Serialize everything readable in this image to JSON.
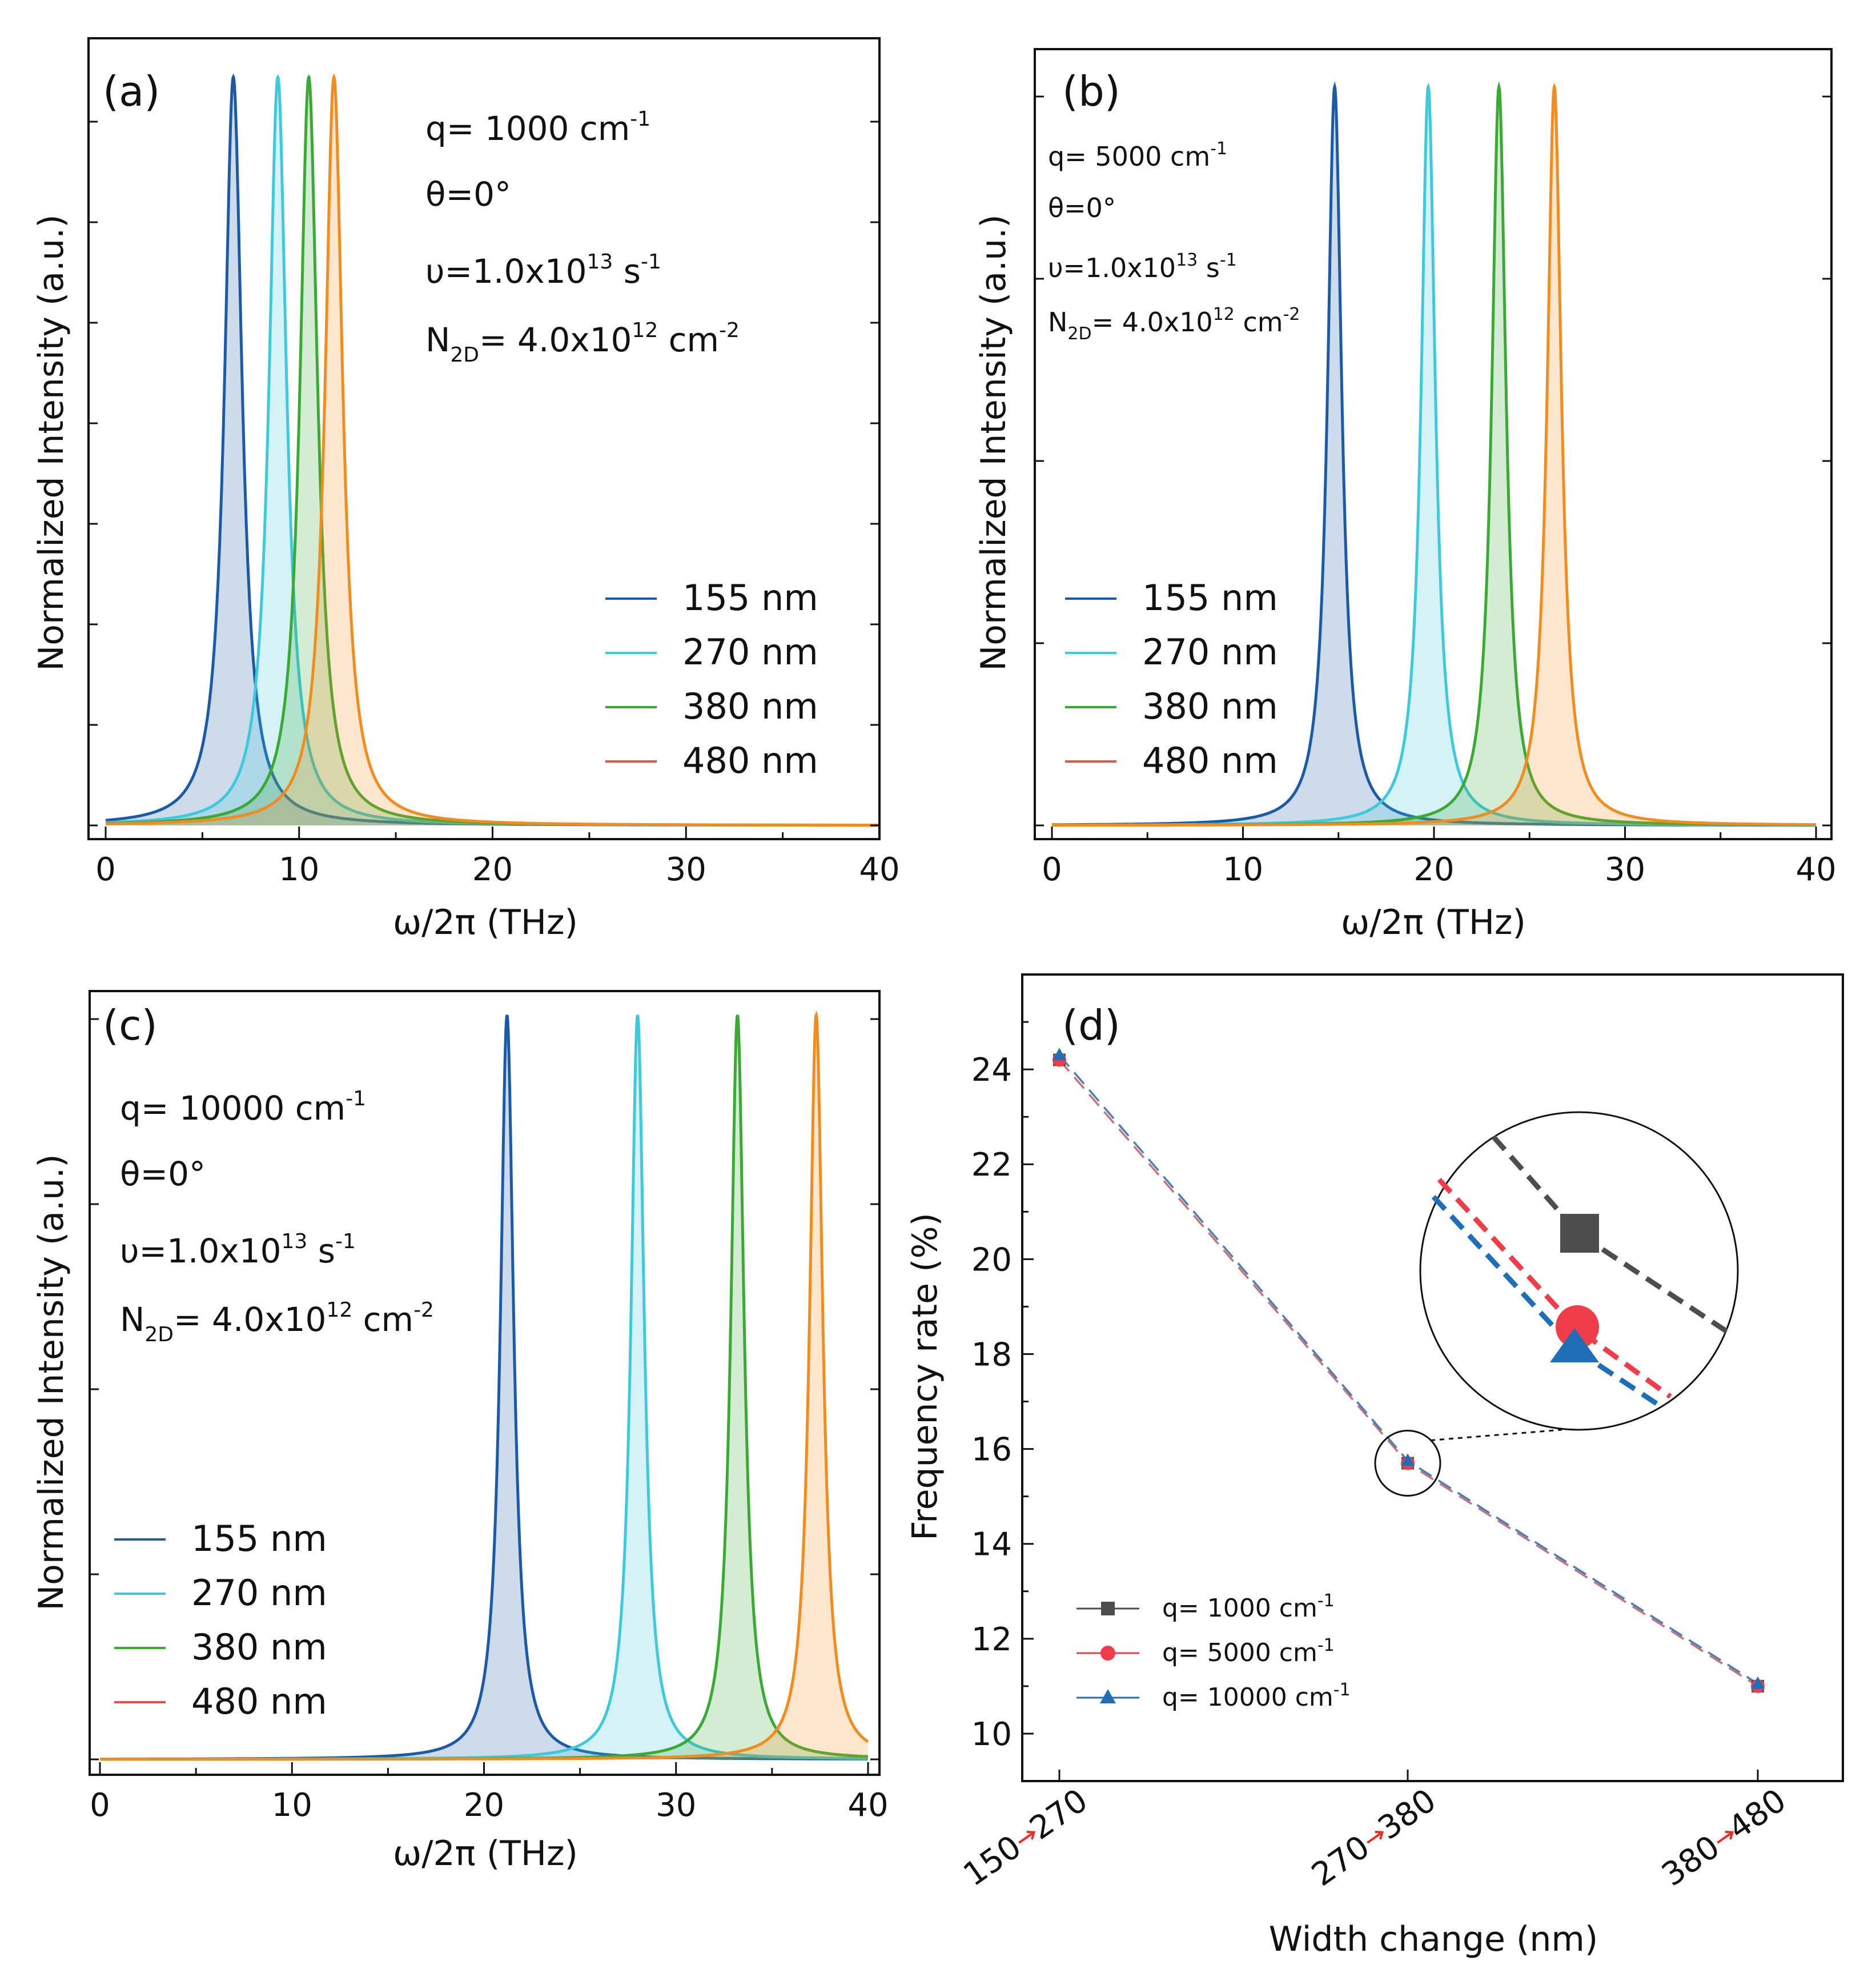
{
  "colors": {
    "155": "#1b5aa6",
    "270": "#3ec9dc",
    "380": "#3aaa35",
    "480": "#f28c1e",
    "legend_480": "#e8524a",
    "q1000": "#4d4d4d",
    "q5000": "#ef3e4a",
    "q10000": "#1f6fb8",
    "dash_main": "#4a7fb5"
  },
  "panels": [
    {
      "id": "a",
      "label": "(a)",
      "annotations": {
        "q_label": "q= 1000 cm",
        "q_exp": "-1",
        "theta": "θ=0°",
        "nu_label": "υ=1.0x10",
        "nu_exp": "13",
        "nu_unit": " s",
        "nu_unit_exp": "-1",
        "n_label": "N",
        "n_sub": "2D",
        "n_value": "= 4.0x10",
        "n_exp": "12",
        "n_unit": " cm",
        "n_unit_exp": "-2"
      },
      "legend": [
        "155 nm",
        "270 nm",
        "380 nm",
        "480 nm"
      ],
      "xlabel": "ω/2π (THz)",
      "ylabel": "Normalized Intensity (a.u.)",
      "xticks": [
        "0",
        "10",
        "20",
        "30",
        "40"
      ],
      "xlim": [
        0,
        40
      ],
      "peaks_thz": [
        6.6,
        8.9,
        10.5,
        11.8
      ]
    },
    {
      "id": "b",
      "label": "(b)",
      "annotations": {
        "q_label": "q= 5000 cm",
        "q_exp": "-1",
        "theta": "θ=0°",
        "nu_label": "υ=1.0x10",
        "nu_exp": "13",
        "nu_unit": " s",
        "nu_unit_exp": "-1",
        "n_label": "N",
        "n_sub": "2D",
        "n_value": "= 4.0x10",
        "n_exp": "12",
        "n_unit": " cm",
        "n_unit_exp": "-2"
      },
      "legend": [
        "155 nm",
        "270 nm",
        "380 nm",
        "480 nm"
      ],
      "xlabel": "ω/2π (THz)",
      "ylabel": "Normalized Intensity (a.u.)",
      "xticks": [
        "0",
        "10",
        "20",
        "30",
        "40"
      ],
      "xlim": [
        0,
        40
      ],
      "peaks_thz": [
        14.8,
        19.7,
        23.4,
        26.3
      ]
    },
    {
      "id": "c",
      "label": "(c)",
      "annotations": {
        "q_label": "q= 10000 cm",
        "q_exp": "-1",
        "theta": "θ=0°",
        "nu_label": "υ=1.0x10",
        "nu_exp": "13",
        "nu_unit": " s",
        "nu_unit_exp": "-1",
        "n_label": "N",
        "n_sub": "2D",
        "n_value": "= 4.0x10",
        "n_exp": "12",
        "n_unit": " cm",
        "n_unit_exp": "-2"
      },
      "legend": [
        "155 nm",
        "270 nm",
        "380 nm",
        "480 nm"
      ],
      "xlabel": "ω/2π (THz)",
      "ylabel": "Normalized Intensity (a.u.)",
      "xticks": [
        "0",
        "10",
        "20",
        "30",
        "40"
      ],
      "xlim": [
        0,
        40
      ],
      "peaks_thz": [
        21.2,
        28.0,
        33.2,
        37.3
      ]
    }
  ],
  "panel_d": {
    "label": "(d)",
    "xlabel": "Width change (nm)",
    "ylabel": "Frequency rate (%)",
    "categories": [
      {
        "from": "150",
        "to": "270"
      },
      {
        "from": "270",
        "to": "380"
      },
      {
        "from": "380",
        "to": "480"
      }
    ],
    "yticks": [
      "10",
      "12",
      "14",
      "16",
      "18",
      "20",
      "22",
      "24"
    ],
    "ylim": [
      9,
      26
    ],
    "legend": [
      {
        "label": "q= 1000 cm",
        "exp": "-1"
      },
      {
        "label": "q= 5000 cm",
        "exp": "-1"
      },
      {
        "label": "q= 10000 cm",
        "exp": "-1"
      }
    ]
  },
  "chart_data": [
    {
      "type": "line",
      "title": "(a)",
      "xlabel": "ω/2π (THz)",
      "ylabel": "Normalized Intensity (a.u.)",
      "xlim": [
        0,
        40
      ],
      "series": [
        {
          "name": "155 nm",
          "peak_x": 6.6,
          "peak_y": 1.0
        },
        {
          "name": "270 nm",
          "peak_x": 8.9,
          "peak_y": 1.0
        },
        {
          "name": "380 nm",
          "peak_x": 10.5,
          "peak_y": 1.0
        },
        {
          "name": "480 nm",
          "peak_x": 11.8,
          "peak_y": 1.0
        }
      ]
    },
    {
      "type": "line",
      "title": "(b)",
      "xlabel": "ω/2π (THz)",
      "ylabel": "Normalized Intensity (a.u.)",
      "xlim": [
        0,
        40
      ],
      "series": [
        {
          "name": "155 nm",
          "peak_x": 14.8,
          "peak_y": 1.0
        },
        {
          "name": "270 nm",
          "peak_x": 19.7,
          "peak_y": 1.0
        },
        {
          "name": "380 nm",
          "peak_x": 23.4,
          "peak_y": 1.0
        },
        {
          "name": "480 nm",
          "peak_x": 26.3,
          "peak_y": 1.0
        }
      ]
    },
    {
      "type": "line",
      "title": "(c)",
      "xlabel": "ω/2π (THz)",
      "ylabel": "Normalized Intensity (a.u.)",
      "xlim": [
        0,
        40
      ],
      "series": [
        {
          "name": "155 nm",
          "peak_x": 21.2,
          "peak_y": 1.0
        },
        {
          "name": "270 nm",
          "peak_x": 28.0,
          "peak_y": 1.0
        },
        {
          "name": "380 nm",
          "peak_x": 33.2,
          "peak_y": 1.0
        },
        {
          "name": "480 nm",
          "peak_x": 37.3,
          "peak_y": 1.0
        }
      ]
    },
    {
      "type": "line",
      "title": "(d)",
      "xlabel": "Width change (nm)",
      "ylabel": "Frequency rate (%)",
      "categories": [
        "150-270",
        "270-380",
        "380-480"
      ],
      "ylim": [
        9,
        26
      ],
      "series": [
        {
          "name": "q= 1000 cm-1",
          "values": [
            24.2,
            15.7,
            11.0
          ]
        },
        {
          "name": "q= 5000 cm-1",
          "values": [
            24.2,
            15.7,
            11.0
          ]
        },
        {
          "name": "q= 10000 cm-1",
          "values": [
            24.3,
            15.75,
            11.05
          ]
        }
      ]
    }
  ]
}
